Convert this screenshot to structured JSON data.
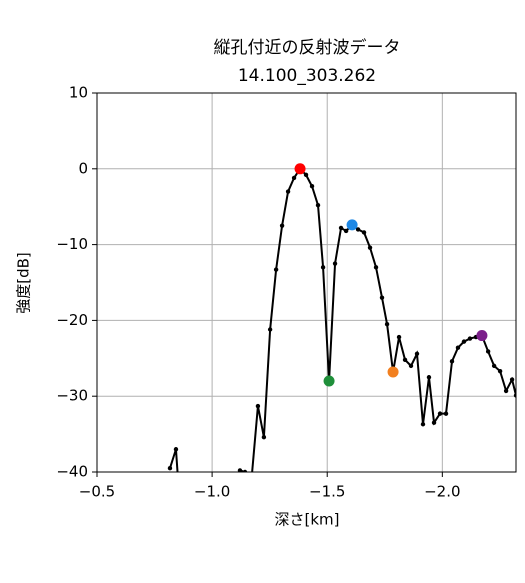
{
  "chart_data": {
    "type": "line",
    "title": "縦孔付近の反射波データ",
    "subtitle": "14.100_303.262",
    "x_label": "深さ[km]",
    "y_label": "強度[dB]",
    "xlim": [
      -0.5,
      -2.32
    ],
    "ylim": [
      -40,
      10
    ],
    "xticks": [
      {
        "value": -0.5,
        "label": "−0.5"
      },
      {
        "value": -1.0,
        "label": "−1.0"
      },
      {
        "value": -1.5,
        "label": "−1.5"
      },
      {
        "value": -2.0,
        "label": "−2.0"
      }
    ],
    "yticks": [
      10,
      0,
      {
        "value": -10,
        "label": "−10"
      },
      {
        "value": -20,
        "label": "−20"
      },
      {
        "value": -30,
        "label": "−30"
      },
      {
        "value": -40,
        "label": "−40"
      }
    ],
    "grid": true,
    "series": [
      {
        "color": "#000000",
        "x": [
          -0.817,
          -0.843,
          -0.852,
          null,
          -1.121,
          -1.143,
          -1.173,
          -1.199,
          -1.225,
          -1.252,
          -1.278,
          -1.304,
          -1.33,
          -1.356,
          -1.382,
          -1.408,
          -1.434,
          -1.46,
          -1.482,
          -1.508,
          -1.534,
          -1.56,
          -1.582,
          -1.608,
          -1.634,
          -1.66,
          -1.686,
          -1.712,
          -1.738,
          -1.76,
          -1.786,
          -1.812,
          -1.838,
          -1.864,
          -1.89,
          -1.916,
          -1.942,
          -1.964,
          -1.99,
          -2.016,
          -2.042,
          -2.068,
          -2.094,
          -2.12,
          -2.146,
          -2.172,
          -2.199,
          -2.225,
          -2.251,
          -2.277,
          -2.303,
          -2.32
        ],
        "values": [
          -39.5,
          -37,
          -41,
          null,
          -39.8,
          -40,
          -40.3,
          -31.3,
          -35.4,
          -21.2,
          -13.3,
          -7.5,
          -3,
          -1.2,
          0,
          -0.8,
          -2.3,
          -4.8,
          -13,
          -28,
          -12.5,
          -7.8,
          -8.2,
          -7.4,
          -8,
          -8.4,
          -10.4,
          -13,
          -17,
          -20.5,
          -26.8,
          -22.2,
          -25.2,
          -26,
          -24.4,
          -33.7,
          -27.5,
          -33.5,
          -32.3,
          -32.3,
          -25.4,
          -23.6,
          -22.8,
          -22.4,
          -22.2,
          -22,
          -24.1,
          -26,
          -26.7,
          -29.3,
          -27.8,
          -29.9
        ]
      },
      {
        "type": "scatter",
        "color": "#ff0000",
        "x": [
          -1.382
        ],
        "values": [
          0
        ]
      },
      {
        "type": "scatter",
        "color": "#1e88e5",
        "x": [
          -1.608
        ],
        "values": [
          -7.4
        ]
      },
      {
        "type": "scatter",
        "color": "#1f8f3a",
        "x": [
          -1.508
        ],
        "values": [
          -28
        ]
      },
      {
        "type": "scatter",
        "color": "#f28020",
        "x": [
          -1.786
        ],
        "values": [
          -26.8
        ]
      },
      {
        "type": "scatter",
        "color": "#7b1f8a",
        "x": [
          -2.172
        ],
        "values": [
          -22
        ]
      }
    ]
  }
}
